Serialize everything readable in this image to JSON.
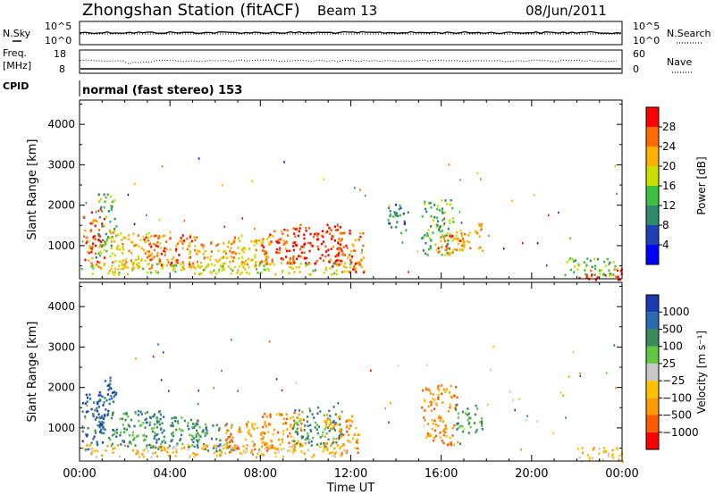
{
  "header": {
    "station": "Zhongshan Station (fitACF)",
    "beam": "Beam 13",
    "date": "08/Jun/2011"
  },
  "strips": {
    "nsky_label": "N.Sky",
    "nsearch_label": "N.Search",
    "freq_label_1": "Freq.",
    "freq_label_2": "[MHz]",
    "nave_label": "Nave",
    "cpid_label": "CPID",
    "cpid_value": "normal (fast stereo) 153",
    "nsky_ticks": [
      "10^5",
      "10^0"
    ],
    "nsearch_ticks": [
      "10^5",
      "10^0"
    ],
    "freq_ticks": [
      "18",
      "8"
    ],
    "nave_ticks": [
      "60",
      "0"
    ]
  },
  "chart_data": [
    {
      "type": "heatmap",
      "ylabel": "Slant Range [km]",
      "xlabel": "",
      "y_ticks": [
        "4000",
        "3000",
        "2000",
        "1000"
      ],
      "y_tick_values": [
        4000,
        3000,
        2000,
        1000
      ],
      "ylim": [
        180,
        4600
      ],
      "xlim": [
        0,
        24
      ],
      "colorbar_label": "Power [dB]",
      "colorbar_ticks": [
        "28",
        "24",
        "20",
        "16",
        "12",
        "8",
        "4"
      ],
      "colorbar_colors": [
        "#0000ff",
        "#1f3fb4",
        "#2e8a6a",
        "#3cc040",
        "#c8e000",
        "#ffb000",
        "#ff6a00",
        "#ff0000"
      ],
      "blobs": [
        {
          "t": 0.6,
          "r": 1150,
          "dt": 0.5,
          "dr": 700,
          "c": 6
        },
        {
          "t": 1.2,
          "r": 1500,
          "dt": 0.4,
          "dr": 800,
          "c": 3
        },
        {
          "t": 2.5,
          "r": 900,
          "dt": 1.2,
          "dr": 450,
          "c": 5
        },
        {
          "t": 4.0,
          "r": 900,
          "dt": 1.2,
          "dr": 400,
          "c": 6
        },
        {
          "t": 5.8,
          "r": 800,
          "dt": 1.0,
          "dr": 350,
          "c": 5
        },
        {
          "t": 7.4,
          "r": 900,
          "dt": 1.0,
          "dr": 380,
          "c": 5
        },
        {
          "t": 9.0,
          "r": 1000,
          "dt": 1.0,
          "dr": 450,
          "c": 6
        },
        {
          "t": 10.5,
          "r": 1050,
          "dt": 1.1,
          "dr": 500,
          "c": 7
        },
        {
          "t": 11.8,
          "r": 900,
          "dt": 0.8,
          "dr": 550,
          "c": 6
        },
        {
          "t": 6.0,
          "r": 450,
          "dt": 6.0,
          "dr": 150,
          "c": 4
        },
        {
          "t": 15.8,
          "r": 1450,
          "dt": 0.7,
          "dr": 700,
          "c": 3
        },
        {
          "t": 16.4,
          "r": 1050,
          "dt": 0.6,
          "dr": 300,
          "c": 6
        },
        {
          "t": 17.2,
          "r": 1250,
          "dt": 0.6,
          "dr": 350,
          "c": 5
        },
        {
          "t": 14.0,
          "r": 1700,
          "dt": 0.4,
          "dr": 400,
          "c": 2
        },
        {
          "t": 23.0,
          "r": 300,
          "dt": 1.0,
          "dr": 150,
          "c": 7
        },
        {
          "t": 22.6,
          "r": 500,
          "dt": 1.2,
          "dr": 220,
          "c": 3
        }
      ]
    },
    {
      "type": "heatmap",
      "ylabel": "Slant Range [km]",
      "xlabel": "Time UT",
      "x_ticks": [
        "00:00",
        "04:00",
        "08:00",
        "12:00",
        "16:00",
        "20:00",
        "00:00"
      ],
      "x_tick_values": [
        0,
        4,
        8,
        12,
        16,
        20,
        24
      ],
      "y_ticks": [
        "4000",
        "3000",
        "2000",
        "1000"
      ],
      "y_tick_values": [
        4000,
        3000,
        2000,
        1000
      ],
      "ylim": [
        180,
        4600
      ],
      "xlim": [
        0,
        24
      ],
      "colorbar_label": "Velocity [m s⁻¹]",
      "colorbar_ticks": [
        "1000",
        "500",
        "100",
        "25",
        "−25",
        "−100",
        "−500",
        "−1000"
      ],
      "colorbar_colors": [
        "#ff0000",
        "#ff5a00",
        "#ff9a00",
        "#ffc000",
        "#c8c8c8",
        "#60c840",
        "#3a8a5a",
        "#2a6ab0",
        "#1a3ab0"
      ],
      "blobs": [
        {
          "t": 0.6,
          "r": 1150,
          "dt": 0.5,
          "dr": 700,
          "c": 7
        },
        {
          "t": 1.2,
          "r": 1500,
          "dt": 0.4,
          "dr": 800,
          "c": 7
        },
        {
          "t": 2.5,
          "r": 1000,
          "dt": 1.2,
          "dr": 450,
          "c": 6
        },
        {
          "t": 4.0,
          "r": 900,
          "dt": 1.2,
          "dr": 400,
          "c": 6
        },
        {
          "t": 5.8,
          "r": 800,
          "dt": 1.0,
          "dr": 350,
          "c": 6
        },
        {
          "t": 7.4,
          "r": 800,
          "dt": 1.0,
          "dr": 380,
          "c": 2
        },
        {
          "t": 9.0,
          "r": 950,
          "dt": 1.0,
          "dr": 450,
          "c": 2
        },
        {
          "t": 10.5,
          "r": 1050,
          "dt": 1.1,
          "dr": 500,
          "c": 6
        },
        {
          "t": 11.6,
          "r": 850,
          "dt": 0.8,
          "dr": 500,
          "c": 2
        },
        {
          "t": 6.0,
          "r": 450,
          "dt": 6.0,
          "dr": 150,
          "c": 3
        },
        {
          "t": 15.9,
          "r": 1350,
          "dt": 0.8,
          "dr": 750,
          "c": 2
        },
        {
          "t": 17.2,
          "r": 1250,
          "dt": 0.6,
          "dr": 350,
          "c": 6
        },
        {
          "t": 23.0,
          "r": 350,
          "dt": 1.0,
          "dr": 200,
          "c": 3
        }
      ]
    }
  ]
}
